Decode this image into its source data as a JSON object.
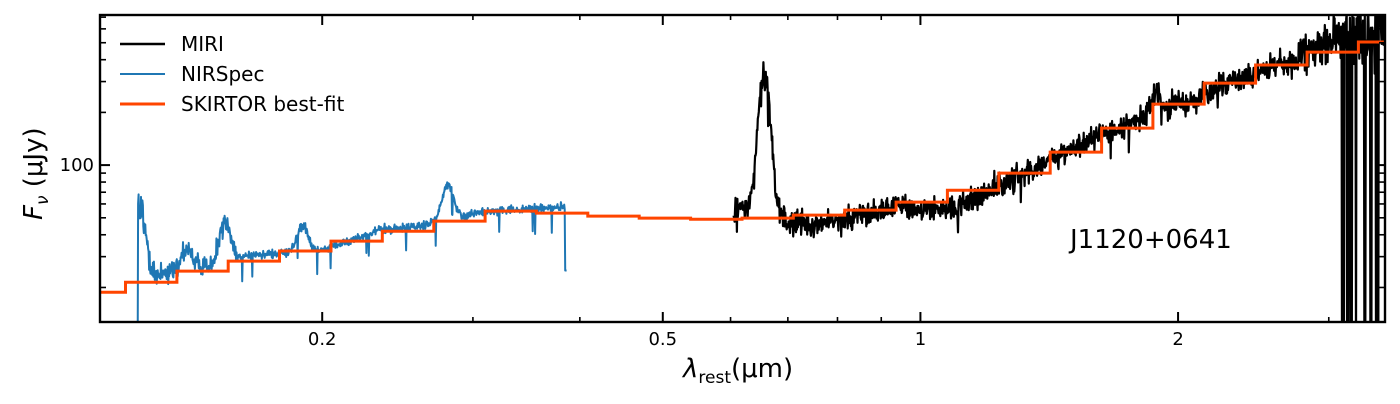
{
  "chart_data": {
    "type": "line",
    "title": "",
    "xlabel": "λ_rest (μm)",
    "xlabel_main": "λ",
    "xlabel_sub": "rest",
    "xlabel_unit": "(μm)",
    "ylabel": "F_ν (μJy)",
    "ylabel_main": "F",
    "ylabel_sub": "ν",
    "ylabel_unit": " (μJy)",
    "xscale": "log",
    "yscale": "log",
    "xlim": [
      0.11,
      3.49
    ],
    "ylim": [
      12.7,
      720
    ],
    "x_ticks": [
      {
        "value": 0.2,
        "label": "0.2"
      },
      {
        "value": 0.5,
        "label": "0.5"
      },
      {
        "value": 1,
        "label": "1"
      },
      {
        "value": 2,
        "label": "2"
      }
    ],
    "x_minor_ticks": [
      0.3,
      0.4,
      0.6,
      0.7,
      0.8,
      0.9,
      3
    ],
    "y_ticks": [
      {
        "value": 100,
        "label": "100"
      }
    ],
    "y_minor_ticks": [
      20,
      30,
      40,
      50,
      60,
      70,
      80,
      90,
      200,
      300,
      400,
      500,
      600,
      700
    ],
    "grid": false,
    "legend_position": "top-left",
    "annotation": "J1120+0641",
    "series": [
      {
        "name": "MIRI",
        "color": "#000000",
        "continuum_x": [
          0.605,
          0.6163,
          0.7243,
          0.8282,
          0.9476,
          1.084,
          1.24,
          1.419,
          1.623,
          1.857,
          2.124,
          2.43,
          2.78,
          3.18,
          3.493
        ],
        "continuum_y": [
          55,
          59,
          45.4,
          49.8,
          59,
          55,
          76.8,
          106.8,
          148,
          193,
          251,
          327,
          425,
          553,
          630
        ],
        "lines": [
          {
            "x": 0.657,
            "peak": 314
          },
          {
            "x": 1.89,
            "peak": 250
          }
        ]
      },
      {
        "name": "NIRSpec",
        "color": "#1f77b4",
        "continuum_x": [
          0.1214,
          0.126,
          0.1441,
          0.1649,
          0.199,
          0.2339,
          0.2605,
          0.3062,
          0.3597,
          0.386
        ],
        "continuum_y": [
          30,
          23.5,
          25.8,
          30.6,
          32.6,
          42.5,
          45.4,
          54,
          56.8,
          58
        ],
        "lines": [
          {
            "x": 0.1222,
            "peak": 56.8
          },
          {
            "x": 0.1392,
            "peak": 33.6
          },
          {
            "x": 0.1539,
            "peak": 47.2
          },
          {
            "x": 0.1897,
            "peak": 45.4
          },
          {
            "x": 0.2804,
            "peak": 77.9
          }
        ]
      },
      {
        "name": "SKIRTOR best-fit",
        "color": "#ff4500",
        "type": "step",
        "bin_edges": [
          0.11,
          0.1178,
          0.1353,
          0.1553,
          0.1783,
          0.2048,
          0.2351,
          0.27,
          0.31,
          0.3559,
          0.4087,
          0.4693,
          0.5388,
          0.6187,
          0.7104,
          0.8157,
          0.9366,
          1.0754,
          1.2348,
          1.4178,
          1.628,
          1.869,
          2.146,
          2.464,
          2.83,
          3.249,
          3.49
        ],
        "values": [
          18.8,
          21.4,
          24.8,
          28.3,
          32.3,
          36.8,
          41.9,
          47.9,
          54.6,
          53.2,
          51.1,
          49.8,
          49.1,
          49.8,
          51.8,
          55.3,
          61.5,
          71.9,
          90,
          118.7,
          162.7,
          223,
          294,
          373,
          442,
          505
        ]
      }
    ]
  }
}
